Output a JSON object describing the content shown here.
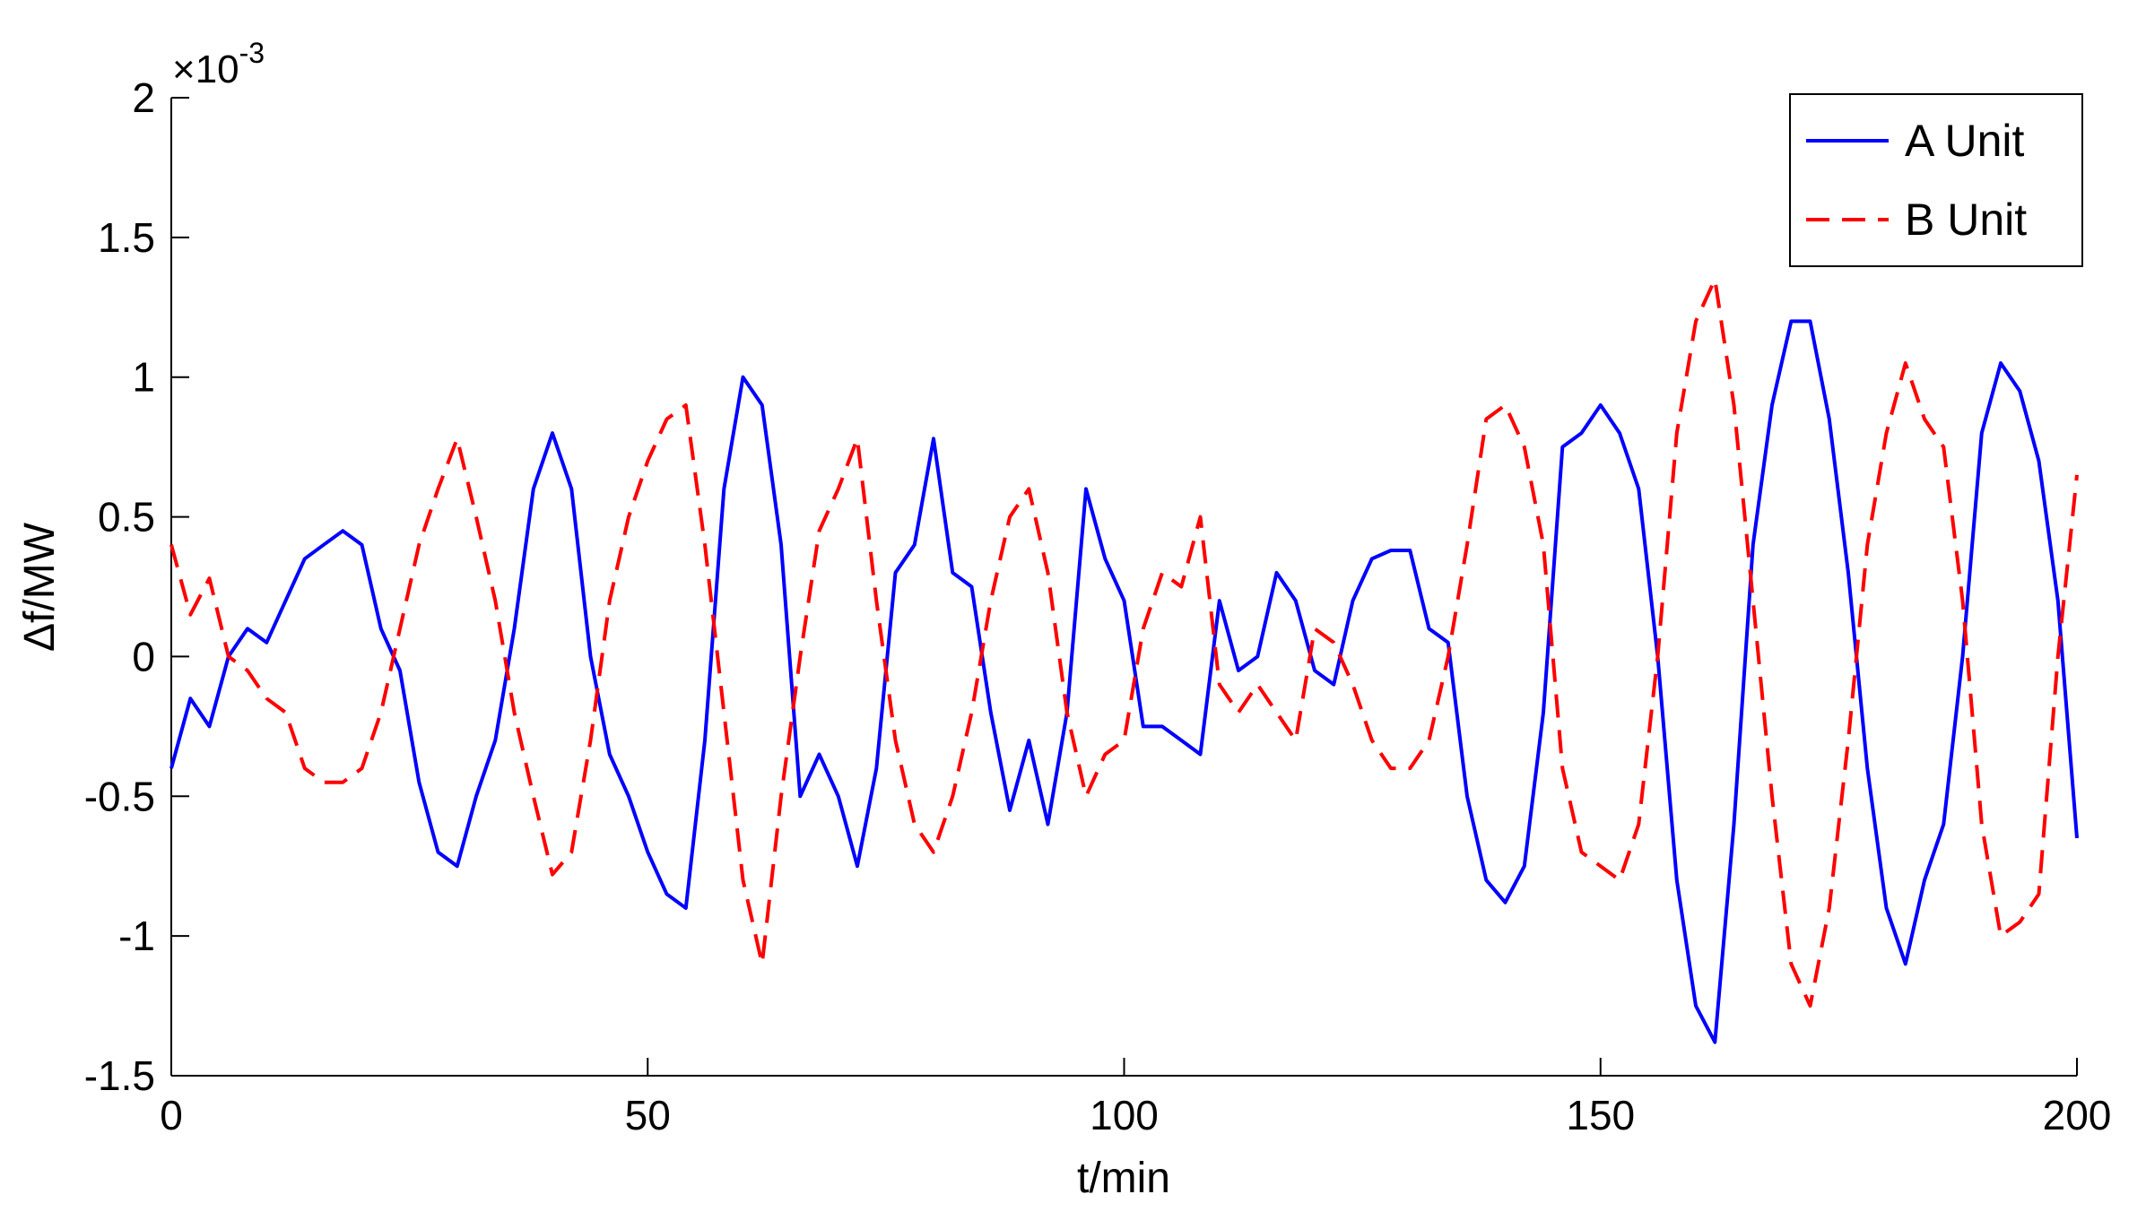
{
  "chart_data": {
    "type": "line",
    "y_label": "Δf/MW",
    "x_label": "t/min",
    "y_multiplier": {
      "base": "×10",
      "exponent": "-3"
    },
    "xlim": [
      0,
      200
    ],
    "xticks": [
      0,
      50,
      100,
      150,
      200
    ],
    "ylim": [
      -1.5,
      2
    ],
    "yticks": [
      -1.5,
      -1,
      -0.5,
      0,
      0.5,
      1,
      1.5,
      2
    ],
    "grid": false,
    "legend": "upper right",
    "x": [
      0,
      2,
      4,
      6,
      8,
      10,
      12,
      14,
      16,
      18,
      20,
      22,
      24,
      26,
      28,
      30,
      32,
      34,
      36,
      38,
      40,
      42,
      44,
      46,
      48,
      50,
      52,
      54,
      56,
      58,
      60,
      62,
      64,
      66,
      68,
      70,
      72,
      74,
      76,
      78,
      80,
      82,
      84,
      86,
      88,
      90,
      92,
      94,
      96,
      98,
      100,
      102,
      104,
      106,
      108,
      110,
      112,
      114,
      116,
      118,
      120,
      122,
      124,
      126,
      128,
      130,
      132,
      134,
      136,
      138,
      140,
      142,
      144,
      146,
      148,
      150,
      152,
      154,
      156,
      158,
      160,
      162,
      164,
      166,
      168,
      170,
      172,
      174,
      176,
      178,
      180,
      182,
      184,
      186,
      188,
      190,
      192,
      194,
      196,
      198,
      200
    ],
    "series": [
      {
        "name": "A Unit",
        "color": "#0000ff",
        "dash": "solid",
        "values": [
          -0.4,
          -0.15,
          -0.25,
          0,
          0.1,
          0.05,
          0.2,
          0.35,
          0.4,
          0.45,
          0.4,
          0.1,
          -0.05,
          -0.45,
          -0.7,
          -0.75,
          -0.5,
          -0.3,
          0.1,
          0.6,
          0.8,
          0.6,
          0,
          -0.35,
          -0.5,
          -0.7,
          -0.85,
          -0.9,
          -0.3,
          0.6,
          1.0,
          0.9,
          0.4,
          -0.5,
          -0.35,
          -0.5,
          -0.75,
          -0.4,
          0.3,
          0.4,
          0.78,
          0.3,
          0.25,
          -0.2,
          -0.55,
          -0.3,
          -0.6,
          -0.2,
          0.6,
          0.35,
          0.2,
          -0.25,
          -0.25,
          -0.3,
          -0.35,
          0.2,
          -0.05,
          0,
          0.3,
          0.2,
          -0.05,
          -0.1,
          0.2,
          0.35,
          0.38,
          0.38,
          0.1,
          0.05,
          -0.5,
          -0.8,
          -0.88,
          -0.75,
          -0.2,
          0.75,
          0.8,
          0.9,
          0.8,
          0.6,
          0,
          -0.8,
          -1.25,
          -1.38,
          -0.6,
          0.4,
          0.9,
          1.2,
          1.2,
          0.85,
          0.3,
          -0.4,
          -0.9,
          -1.1,
          -0.8,
          -0.6,
          0,
          0.8,
          1.05,
          0.95,
          0.7,
          0.2,
          -0.65
        ]
      },
      {
        "name": "B Unit",
        "color": "#ff0000",
        "dash": "dashed",
        "values": [
          0.4,
          0.15,
          0.28,
          0,
          -0.05,
          -0.15,
          -0.2,
          -0.4,
          -0.45,
          -0.45,
          -0.4,
          -0.2,
          0.1,
          0.4,
          0.6,
          0.78,
          0.5,
          0.2,
          -0.2,
          -0.5,
          -0.78,
          -0.7,
          -0.3,
          0.2,
          0.5,
          0.7,
          0.85,
          0.9,
          0.4,
          -0.2,
          -0.8,
          -1.1,
          -0.5,
          0,
          0.45,
          0.6,
          0.78,
          0.2,
          -0.3,
          -0.6,
          -0.7,
          -0.5,
          -0.2,
          0.2,
          0.5,
          0.6,
          0.3,
          -0.2,
          -0.5,
          -0.35,
          -0.3,
          0.1,
          0.3,
          0.25,
          0.5,
          -0.1,
          -0.2,
          -0.1,
          -0.2,
          -0.3,
          0.1,
          0.05,
          -0.1,
          -0.3,
          -0.4,
          -0.4,
          -0.3,
          0,
          0.4,
          0.85,
          0.9,
          0.75,
          0.4,
          -0.4,
          -0.7,
          -0.75,
          -0.8,
          -0.6,
          0,
          0.8,
          1.2,
          1.35,
          0.9,
          0.2,
          -0.5,
          -1.1,
          -1.25,
          -0.9,
          -0.3,
          0.4,
          0.8,
          1.05,
          0.85,
          0.75,
          0.2,
          -0.6,
          -1.0,
          -0.95,
          -0.85,
          0,
          0.65
        ]
      }
    ]
  }
}
